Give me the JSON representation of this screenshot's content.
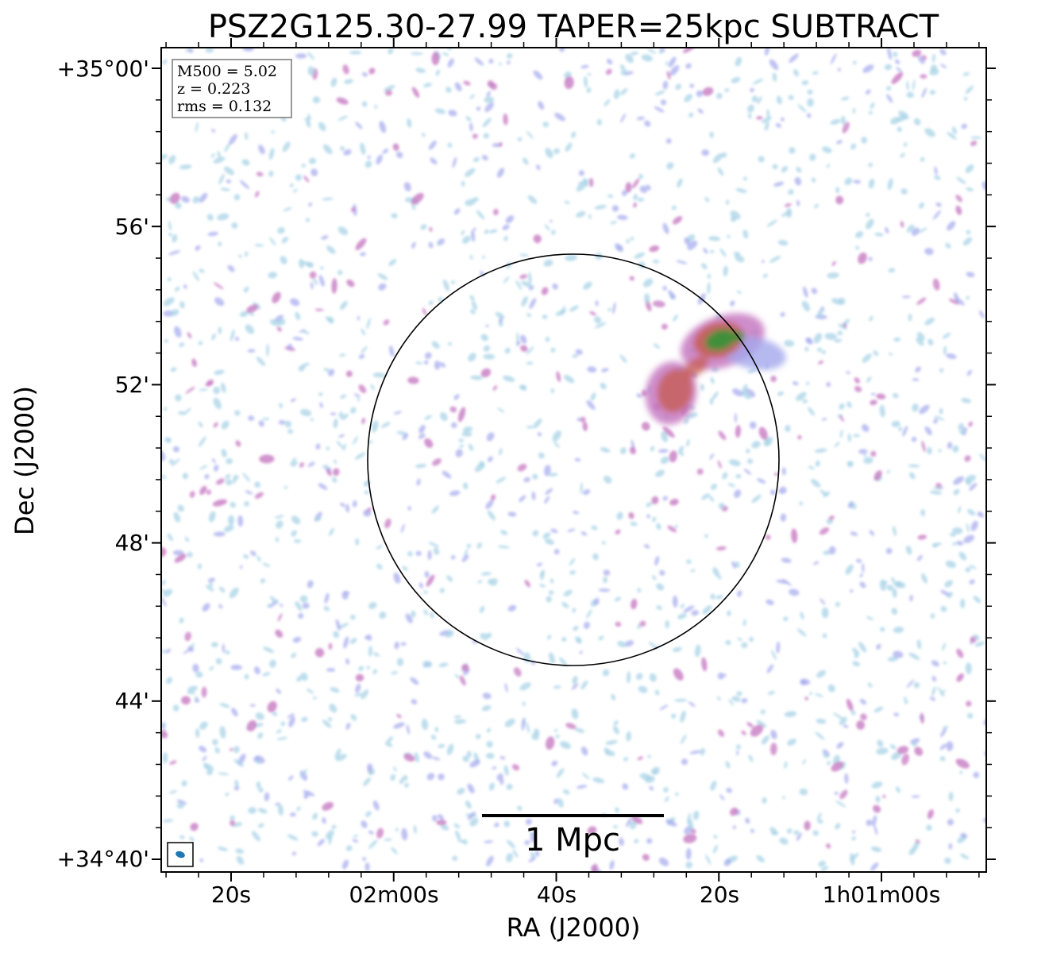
{
  "chart_data": {
    "type": "image",
    "title": "PSZ2G125.30-27.99 TAPER=25kpc SUBTRACT",
    "xlabel": "RA (J2000)",
    "ylabel": "Dec (J2000)",
    "x_ticks": [
      "20s",
      "02m00s",
      "40s",
      "20s",
      "1h01m00s"
    ],
    "y_ticks": [
      "+35°00'",
      "56'",
      "52'",
      "48'",
      "44'",
      "+34°40'"
    ],
    "info_box": {
      "m500": "M500 = 5.02",
      "z": "z = 0.223",
      "rms": "rms = 0.132"
    },
    "scale_bar_label": "1 Mpc",
    "colors": {
      "faint": "#a8d3e6",
      "low": "#a4a8ec",
      "mid": "#c77ac2",
      "high": "#c7605a",
      "peak": "#3f8f3a"
    }
  }
}
